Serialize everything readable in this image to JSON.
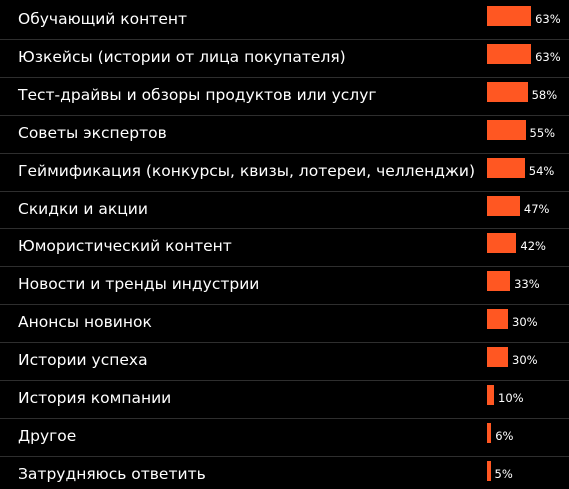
{
  "chart_data": {
    "type": "bar",
    "orientation": "horizontal",
    "bar_color": "#ff5722",
    "categories": [
      "Обучающий контент",
      "Юзкейсы (истории  от лица покупателя)",
      "Тест-драйвы и обзоры продуктов или услуг",
      "Советы экспертов",
      "Геймификация (конкурсы, квизы, лотереи, челленджи)",
      "Скидки и акции",
      "Юмористический контент",
      "Новости и тренды индустрии",
      "Анонсы новинок",
      "Истории успеха",
      "История компании",
      "Другое",
      "Затрудняюсь ответить"
    ],
    "values": [
      63,
      63,
      58,
      55,
      54,
      47,
      42,
      33,
      30,
      30,
      10,
      6,
      5
    ],
    "value_labels": [
      "63%",
      "63%",
      "58%",
      "55%",
      "54%",
      "47%",
      "42%",
      "33%",
      "30%",
      "30%",
      "10%",
      "6%",
      "5%"
    ],
    "unit": "%"
  }
}
